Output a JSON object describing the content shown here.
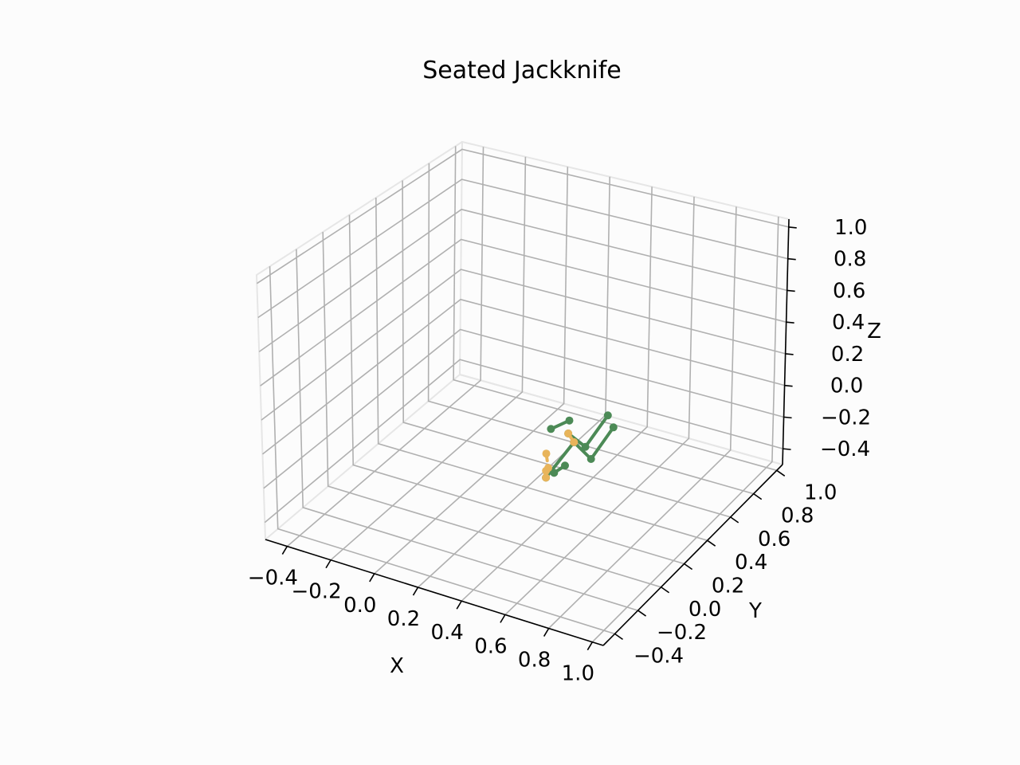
{
  "chart_data": {
    "type": "line",
    "title": "Seated Jackknife",
    "projection": "3d",
    "xlabel": "X",
    "ylabel": "Y",
    "zlabel": "Z",
    "x_ticks": [
      "−0.4",
      "−0.2",
      "0.0",
      "0.2",
      "0.4",
      "0.6",
      "0.8",
      "1.0"
    ],
    "y_ticks": [
      "−0.4",
      "−0.2",
      "0.0",
      "0.2",
      "0.4",
      "0.6",
      "0.8",
      "1.0"
    ],
    "z_ticks": [
      "−0.4",
      "−0.2",
      "0.0",
      "0.2",
      "0.4",
      "0.6",
      "0.8",
      "1.0"
    ],
    "xlim": [
      -0.5,
      1.05
    ],
    "ylim": [
      -0.5,
      1.05
    ],
    "zlim": [
      -0.5,
      1.05
    ],
    "grid": true,
    "colors": {
      "limbs": "#4c8a56",
      "torso": "#e8b45a",
      "background": "#fcfcfc"
    },
    "series": [
      {
        "style": "solid",
        "color": "limbs",
        "points": [
          [
            0.5,
            0.2,
            0.05
          ],
          [
            0.58,
            0.2,
            0.0
          ],
          [
            0.6,
            0.35,
            0.1
          ]
        ]
      },
      {
        "style": "solid",
        "color": "limbs",
        "points": [
          [
            0.42,
            0.2,
            0.05
          ],
          [
            0.45,
            0.3,
            0.05
          ]
        ]
      },
      {
        "style": "solid",
        "color": "limbs",
        "points": [
          [
            0.5,
            0.25,
            -0.03
          ],
          [
            0.58,
            0.25,
            -0.1
          ],
          [
            0.6,
            0.4,
            0.0
          ]
        ]
      },
      {
        "style": "solid",
        "color": "limbs",
        "points": [
          [
            0.4,
            0.2,
            -0.24
          ],
          [
            0.5,
            0.25,
            -0.03
          ]
        ]
      },
      {
        "style": "solid",
        "color": "limbs",
        "points": [
          [
            0.41,
            0.25,
            -0.24
          ],
          [
            0.46,
            0.25,
            -0.18
          ]
        ]
      },
      {
        "style": "dashed",
        "color": "torso",
        "points": [
          [
            0.5,
            0.2,
            0.05
          ],
          [
            0.5,
            0.25,
            -0.03
          ]
        ]
      },
      {
        "style": "dashed",
        "color": "torso",
        "points": [
          [
            0.4,
            0.2,
            -0.1
          ],
          [
            0.41,
            0.2,
            -0.18
          ]
        ]
      },
      {
        "style": "dashed",
        "color": "torso",
        "points": [
          [
            0.4,
            0.2,
            -0.2
          ],
          [
            0.4,
            0.2,
            -0.24
          ]
        ]
      }
    ]
  }
}
